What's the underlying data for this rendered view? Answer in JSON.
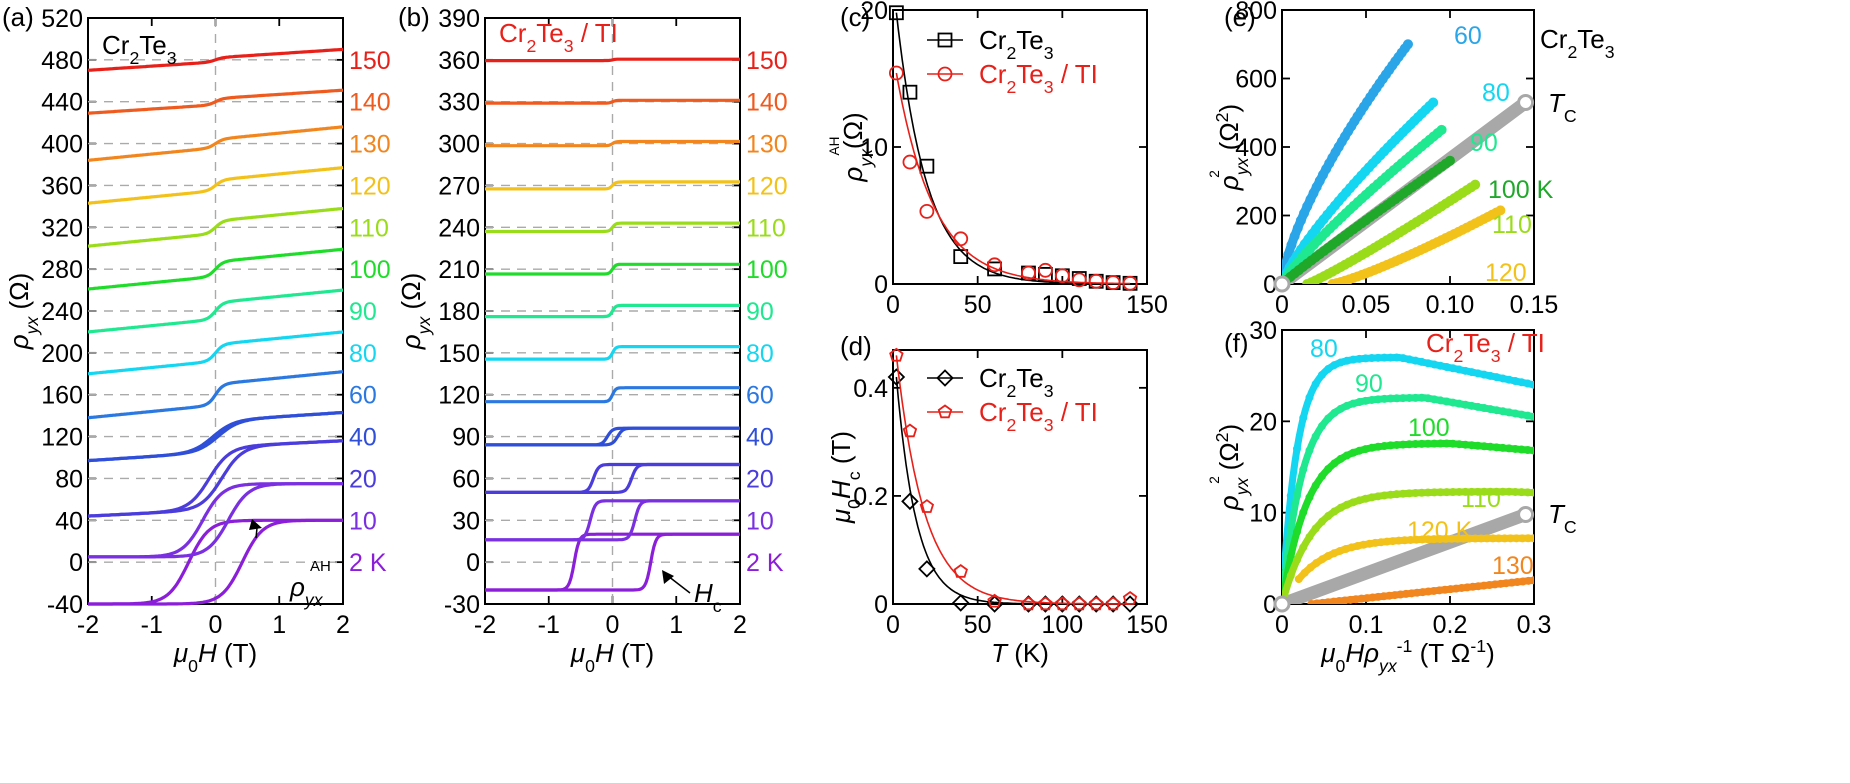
{
  "chart_data": [
    {
      "id": "a",
      "type": "line",
      "panel_label": "(a)",
      "annotation": "Cr2Te3",
      "xlabel": "μ0H (T)",
      "ylabel": "ρyx (Ω)",
      "xlim": [
        -2,
        2
      ],
      "ylim": [
        -40,
        520
      ],
      "xticks": [
        "-2",
        "-1",
        "0",
        "1",
        "2"
      ],
      "yticks": [
        "-40",
        "0",
        "40",
        "80",
        "120",
        "160",
        "200",
        "240",
        "280",
        "320",
        "360",
        "400",
        "440",
        "480",
        "520"
      ],
      "grid": "dashed-horizontal",
      "markers": [
        {
          "text": "ρyxAH",
          "kind": "arrow"
        }
      ],
      "series": [
        {
          "label": "2 K",
          "temp": 2,
          "offset": 0,
          "amp": 40,
          "hc": 0.42,
          "slope": 0,
          "color": "#8b1fd9"
        },
        {
          "label": "10",
          "temp": 10,
          "offset": 40,
          "amp": 35,
          "hc": 0.2,
          "slope": 0,
          "color": "#7a30e0"
        },
        {
          "label": "20",
          "temp": 20,
          "offset": 80,
          "amp": 30,
          "hc": 0.1,
          "slope": 3,
          "color": "#4b3ddb"
        },
        {
          "label": "40",
          "temp": 40,
          "offset": 120,
          "amp": 15,
          "hc": 0.04,
          "slope": 4,
          "color": "#2f4fd8"
        },
        {
          "label": "60",
          "temp": 60,
          "offset": 160,
          "amp": 10,
          "hc": 0,
          "slope": 6,
          "color": "#2a78e0"
        },
        {
          "label": "80",
          "temp": 80,
          "offset": 200,
          "amp": 8,
          "hc": 0,
          "slope": 6,
          "color": "#14d6f0"
        },
        {
          "label": "90",
          "temp": 90,
          "offset": 240,
          "amp": 8,
          "hc": 0,
          "slope": 6,
          "color": "#1fe890"
        },
        {
          "label": "100",
          "temp": 100,
          "offset": 280,
          "amp": 7,
          "hc": 0,
          "slope": 6,
          "color": "#1fdc2a"
        },
        {
          "label": "110",
          "temp": 110,
          "offset": 320,
          "amp": 6,
          "hc": 0,
          "slope": 6,
          "color": "#9adc1a"
        },
        {
          "label": "120",
          "temp": 120,
          "offset": 360,
          "amp": 5,
          "hc": 0,
          "slope": 6,
          "color": "#f2c21a"
        },
        {
          "label": "130",
          "temp": 130,
          "offset": 400,
          "amp": 4,
          "hc": 0,
          "slope": 6,
          "color": "#f2861e"
        },
        {
          "label": "140",
          "temp": 140,
          "offset": 440,
          "amp": 3,
          "hc": 0,
          "slope": 4,
          "color": "#ef5a1e"
        },
        {
          "label": "150",
          "temp": 150,
          "offset": 480,
          "amp": 2,
          "hc": 0,
          "slope": 4,
          "color": "#e8201a"
        }
      ]
    },
    {
      "id": "b",
      "type": "line",
      "panel_label": "(b)",
      "annotation": "Cr2Te3 / TI",
      "xlabel": "μ0H (T)",
      "ylabel": "ρyx (Ω)",
      "xlim": [
        -2,
        2
      ],
      "ylim": [
        -30,
        390
      ],
      "xticks": [
        "-2",
        "-1",
        "0",
        "1",
        "2"
      ],
      "yticks": [
        "-30",
        "0",
        "30",
        "60",
        "90",
        "120",
        "150",
        "180",
        "210",
        "240",
        "270",
        "300",
        "330",
        "360",
        "390"
      ],
      "grid": "dashed-horizontal",
      "markers": [
        {
          "text": "Hc",
          "kind": "arrow"
        }
      ],
      "series": [
        {
          "label": "2 K",
          "temp": 2,
          "offset": 0,
          "amp": 20,
          "hc": 0.6,
          "color": "#8b1fd9"
        },
        {
          "label": "10",
          "temp": 10,
          "offset": 30,
          "amp": 14,
          "hc": 0.35,
          "color": "#7a30e0"
        },
        {
          "label": "20",
          "temp": 20,
          "offset": 60,
          "amp": 10,
          "hc": 0.3,
          "color": "#4b3ddb"
        },
        {
          "label": "40",
          "temp": 40,
          "offset": 90,
          "amp": 6,
          "hc": 0.08,
          "color": "#2f4fd8"
        },
        {
          "label": "60",
          "temp": 60,
          "offset": 120,
          "amp": 5,
          "hc": 0,
          "color": "#2a78e0"
        },
        {
          "label": "80",
          "temp": 80,
          "offset": 150,
          "amp": 4.5,
          "hc": 0,
          "color": "#14d6f0"
        },
        {
          "label": "90",
          "temp": 90,
          "offset": 180,
          "amp": 4,
          "hc": 0,
          "color": "#1fe890"
        },
        {
          "label": "100",
          "temp": 100,
          "offset": 210,
          "amp": 3.5,
          "hc": 0,
          "color": "#1fdc2a"
        },
        {
          "label": "110",
          "temp": 110,
          "offset": 240,
          "amp": 3,
          "hc": 0,
          "color": "#9adc1a"
        },
        {
          "label": "120",
          "temp": 120,
          "offset": 270,
          "amp": 2.5,
          "hc": 0,
          "color": "#f2c21a"
        },
        {
          "label": "130",
          "temp": 130,
          "offset": 300,
          "amp": 1.5,
          "hc": 0,
          "color": "#f2861e"
        },
        {
          "label": "140",
          "temp": 140,
          "offset": 330,
          "amp": 1,
          "hc": 0,
          "color": "#ef5a1e"
        },
        {
          "label": "150",
          "temp": 150,
          "offset": 360,
          "amp": 0.5,
          "hc": 0,
          "color": "#e8201a"
        }
      ]
    },
    {
      "id": "c",
      "type": "scatter",
      "panel_label": "(c)",
      "xlabel": "",
      "ylabel": "ρyxAH(Ω)",
      "xlim": [
        0,
        150
      ],
      "ylim": [
        0,
        20
      ],
      "xticks": [
        "0",
        "50",
        "100",
        "150"
      ],
      "yticks": [
        "0",
        "10",
        "20"
      ],
      "legend": "top-right",
      "series": [
        {
          "name": "Cr2Te3",
          "marker": "square",
          "color": "#000000",
          "x": [
            2,
            10,
            20,
            40,
            60,
            80,
            90,
            100,
            110,
            120,
            130,
            140
          ],
          "y": [
            19.8,
            14,
            8.6,
            2,
            1.1,
            0.8,
            0.7,
            0.6,
            0.4,
            0.2,
            0.1,
            0.05
          ]
        },
        {
          "name": "Cr2Te3 / TI",
          "marker": "circle",
          "color": "#e8201a",
          "x": [
            2,
            10,
            20,
            40,
            60,
            80,
            90,
            100,
            110,
            120,
            130,
            140
          ],
          "y": [
            15.4,
            8.9,
            5.3,
            3.3,
            1.4,
            0.8,
            1,
            0.6,
            0.3,
            0.2,
            0.1,
            0.05
          ]
        }
      ]
    },
    {
      "id": "d",
      "type": "scatter",
      "panel_label": "(d)",
      "xlabel": "T (K)",
      "ylabel": "μ0Hc (T)",
      "xlim": [
        0,
        150
      ],
      "ylim": [
        0,
        0.47
      ],
      "xticks": [
        "0",
        "50",
        "100",
        "150"
      ],
      "yticks": [
        "0",
        "0.2",
        "0.4"
      ],
      "legend": "top-right",
      "series": [
        {
          "name": "Cr2Te3",
          "marker": "diamond",
          "color": "#000000",
          "x": [
            2,
            10,
            20,
            40,
            60,
            80,
            90,
            100,
            110,
            120,
            130,
            140
          ],
          "y": [
            0.42,
            0.19,
            0.065,
            0.002,
            0,
            0,
            0,
            0,
            0,
            0,
            0,
            0
          ]
        },
        {
          "name": "Cr2Te3 / TI",
          "marker": "pentagon",
          "color": "#e8201a",
          "x": [
            2,
            10,
            20,
            40,
            60,
            80,
            90,
            100,
            110,
            120,
            130,
            140
          ],
          "y": [
            0.46,
            0.32,
            0.18,
            0.06,
            0.005,
            0,
            0,
            0,
            0,
            0,
            0,
            0.01
          ]
        }
      ]
    },
    {
      "id": "e",
      "type": "scatter",
      "panel_label": "(e)",
      "annotation": "Cr2Te3",
      "xlabel": "",
      "ylabel": "ρyx2 (Ω2)",
      "xlim": [
        0,
        0.15
      ],
      "ylim": [
        0,
        800
      ],
      "xticks": [
        "0",
        "0.05",
        "0.10",
        "0.15"
      ],
      "yticks": [
        "0",
        "200",
        "400",
        "600",
        "800"
      ],
      "tc_label": "TC",
      "tc_line": {
        "x": [
          0,
          0.145
        ],
        "y": [
          0,
          530
        ]
      },
      "series": [
        {
          "label": "60",
          "color": "#2aa6e8",
          "x0": 0,
          "x1": 0.075,
          "ymax": 700,
          "pow": 0.7
        },
        {
          "label": "80",
          "color": "#14d6f0",
          "x0": 0,
          "x1": 0.09,
          "ymax": 530,
          "pow": 0.8
        },
        {
          "label": "90",
          "color": "#1fe890",
          "x0": 0,
          "x1": 0.095,
          "ymax": 450,
          "pow": 0.85
        },
        {
          "label": "100 K",
          "color": "#1fa82a",
          "x0": 0,
          "x1": 0.1,
          "ymax": 360,
          "pow": 0.95
        },
        {
          "label": "110",
          "color": "#9adc1a",
          "x0": 0.015,
          "x1": 0.115,
          "ymax": 290,
          "pow": 1.1
        },
        {
          "label": "120",
          "color": "#f2c21a",
          "x0": 0.03,
          "x1": 0.13,
          "ymax": 215,
          "pow": 1.2
        }
      ]
    },
    {
      "id": "f",
      "type": "scatter",
      "panel_label": "(f)",
      "annotation": "Cr2Te3 / TI",
      "xlabel": "μ0Hρyx-1 (T Ω-1)",
      "ylabel": "ρyx2 (Ω2)",
      "xlim": [
        0,
        0.3
      ],
      "ylim": [
        0,
        30
      ],
      "xticks": [
        "0",
        "0.1",
        "0.2",
        "0.3"
      ],
      "yticks": [
        "0",
        "10",
        "20",
        "30"
      ],
      "tc_label": "TC",
      "tc_line": {
        "x": [
          0,
          0.29
        ],
        "y": [
          0,
          9.8
        ]
      },
      "series": [
        {
          "label": "80",
          "color": "#14d6f0",
          "x0": 0.003,
          "x1": 0.3,
          "peak": 27,
          "peakx": 0.14,
          "end": 24
        },
        {
          "label": "90",
          "color": "#1fe890",
          "x0": 0.003,
          "x1": 0.3,
          "peak": 22.6,
          "peakx": 0.17,
          "end": 20.5
        },
        {
          "label": "100",
          "color": "#1fdc2a",
          "x0": 0.003,
          "x1": 0.3,
          "peak": 17.6,
          "peakx": 0.2,
          "end": 16.8
        },
        {
          "label": "110",
          "color": "#9adc1a",
          "x0": 0.003,
          "x1": 0.3,
          "peak": 12.3,
          "peakx": 0.27,
          "end": 12.2
        },
        {
          "label": "120 K",
          "color": "#f2c21a",
          "x0": 0.02,
          "x1": 0.3,
          "peak": 7.2,
          "peakx": 0.3,
          "end": 7.2
        },
        {
          "label": "130",
          "color": "#f2861e",
          "x0": 0.035,
          "x1": 0.3,
          "peak": 2.6,
          "peakx": 0.3,
          "end": 2.6,
          "linear": true
        }
      ]
    }
  ]
}
